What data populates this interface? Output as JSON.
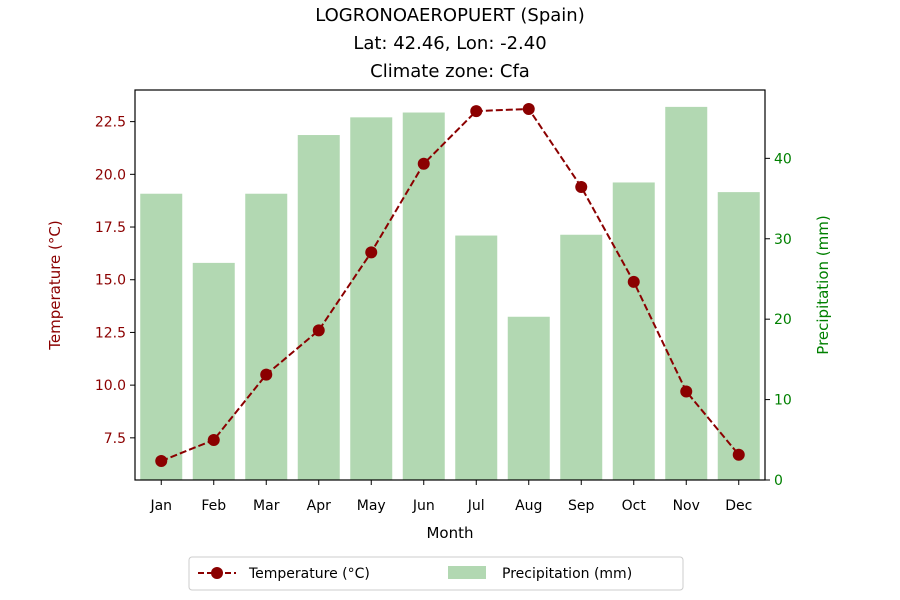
{
  "chart_data": {
    "type": "bar",
    "title": [
      "LOGRONOAEROPUERT (Spain)",
      "Lat: 42.46, Lon: -2.40",
      "Climate zone: Cfa"
    ],
    "xlabel": "Month",
    "categories": [
      "Jan",
      "Feb",
      "Mar",
      "Apr",
      "May",
      "Jun",
      "Jul",
      "Aug",
      "Sep",
      "Oct",
      "Nov",
      "Dec"
    ],
    "left_axis": {
      "label": "Temperature (°C)",
      "range": [
        5.5,
        24
      ],
      "ticks": [
        "7.5",
        "10.0",
        "12.5",
        "15.0",
        "17.5",
        "20.0",
        "22.5"
      ],
      "color": "#8b0000"
    },
    "right_axis": {
      "label": "Precipitation (mm)",
      "range": [
        0,
        48.5
      ],
      "ticks": [
        "0",
        "10",
        "20",
        "30",
        "40"
      ],
      "color": "#008000"
    },
    "series": [
      {
        "name": "Temperature (°C)",
        "type": "line",
        "axis": "left",
        "color": "#8b0000",
        "values": [
          6.4,
          7.4,
          10.5,
          12.6,
          16.3,
          20.5,
          23.0,
          23.1,
          19.4,
          14.9,
          9.7,
          6.7
        ]
      },
      {
        "name": "Precipitation (mm)",
        "type": "bar",
        "axis": "right",
        "color": "#b2d8b2",
        "values": [
          35.6,
          27.0,
          35.6,
          42.9,
          45.1,
          45.7,
          30.4,
          20.3,
          30.5,
          37.0,
          46.4,
          35.8
        ]
      }
    ],
    "grid": false,
    "legend_position": "bottom-center"
  }
}
